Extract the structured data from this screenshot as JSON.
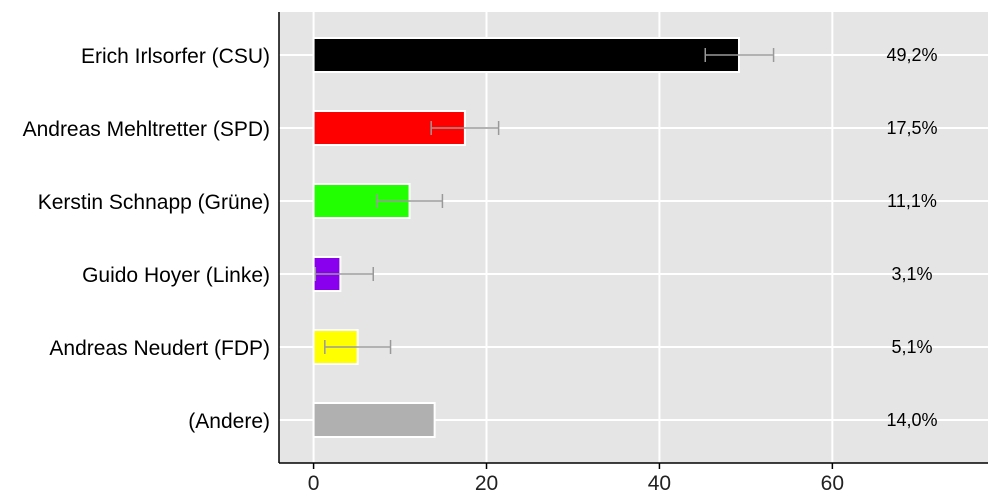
{
  "chart_data": {
    "type": "bar",
    "orientation": "horizontal",
    "title": "",
    "xlabel": "",
    "ylabel": "",
    "xlim": [
      -4,
      78
    ],
    "xticks": [
      0,
      20,
      40,
      60
    ],
    "grid": true,
    "categories": [
      "Erich Irlsorfer (CSU)",
      "Andreas Mehltretter (SPD)",
      "Kerstin Schnapp (Grüne)",
      "Guido Hoyer (Linke)",
      "Andreas Neudert (FDP)",
      "(Andere)"
    ],
    "values": [
      49.2,
      17.5,
      11.1,
      3.1,
      5.1,
      14.0
    ],
    "value_labels": [
      "49,2%",
      "17,5%",
      "11,1%",
      "3,1%",
      "5,1%",
      "14,0%"
    ],
    "error_low": [
      45.3,
      13.6,
      7.3,
      0.2,
      1.3,
      null
    ],
    "error_high": [
      53.2,
      21.4,
      14.9,
      6.9,
      8.9,
      null
    ],
    "colors": [
      "#000000",
      "#ff0000",
      "#22ff00",
      "#8800ee",
      "#ffff00",
      "#b0b0b0"
    ],
    "error_color": "#999999",
    "background_color": "#e5e5e5"
  }
}
